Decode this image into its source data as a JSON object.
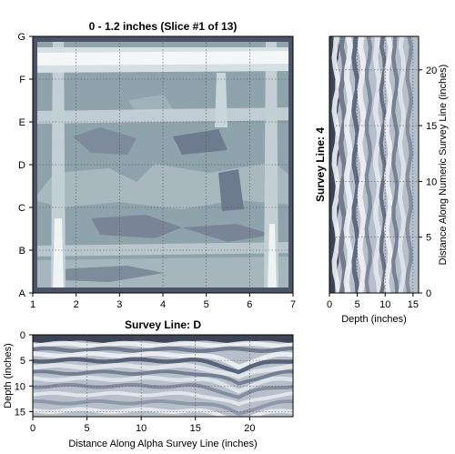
{
  "chart_data": [
    {
      "type": "heatmap",
      "title": "0 - 1.2 inches  (Slice #1 of 13)",
      "xlabel": "",
      "ylabel": "",
      "x_ticks": [
        "1",
        "2",
        "3",
        "4",
        "5",
        "6",
        "7"
      ],
      "y_ticks": [
        "A",
        "B",
        "C",
        "D",
        "E",
        "F",
        "G"
      ],
      "xlim": [
        1,
        7
      ],
      "ylim": [
        "A",
        "G"
      ],
      "grid": true
    },
    {
      "type": "heatmap",
      "title": "Survey Line: 4",
      "xlabel": "Depth (inches)",
      "ylabel": "Distance Along Numeric Survey Line (inches)",
      "x_ticks": [
        "0",
        "5",
        "10",
        "15"
      ],
      "y_ticks": [
        "0",
        "5",
        "10",
        "15",
        "20"
      ],
      "xlim": [
        0,
        16
      ],
      "ylim": [
        0,
        23
      ],
      "grid": true
    },
    {
      "type": "heatmap",
      "title": "Survey Line: D",
      "xlabel": "Distance Along Alpha Survey Line (inches)",
      "ylabel": "Depth (inches)",
      "x_ticks": [
        "0",
        "5",
        "10",
        "15",
        "20"
      ],
      "y_ticks": [
        "0",
        "5",
        "10",
        "15"
      ],
      "xlim": [
        0,
        24
      ],
      "ylim": [
        16,
        0
      ],
      "grid": true
    }
  ],
  "colors": {
    "map_background": "#8ea3ac",
    "map_dark": "#6b7689",
    "map_light": "#c9d6da",
    "map_white": "#f4f7f8",
    "radar_background": "#b7c0ca",
    "radar_dark": "#2f3648",
    "radar_light": "#eef1f4"
  }
}
